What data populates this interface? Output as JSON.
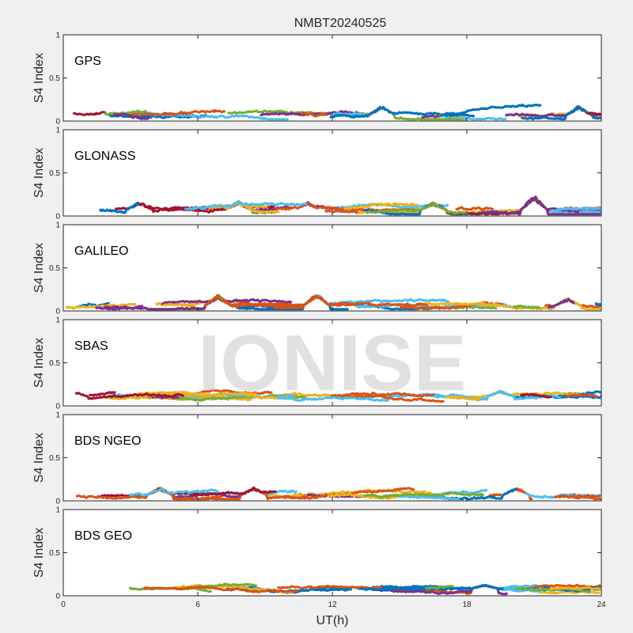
{
  "figure": {
    "title": "NMBT20240525",
    "watermark": "IONISE",
    "xlabel": "UT(h)"
  },
  "chart_data": [
    {
      "type": "scatter",
      "label": "GPS",
      "ylabel": "S4 Index",
      "xlim": [
        0,
        24
      ],
      "ylim": [
        0,
        1
      ],
      "xticks": [
        "0",
        "6",
        "12",
        "18",
        "24"
      ],
      "yticks": [
        "0",
        "0.5",
        "1"
      ],
      "base": 0.065,
      "spread": 0.05,
      "peaks": [
        [
          0.2,
          0.12
        ],
        [
          14.2,
          0.19
        ],
        [
          23.0,
          0.18
        ]
      ]
    },
    {
      "type": "scatter",
      "label": "GLONASS",
      "ylabel": "S4 Index",
      "xlim": [
        0,
        24
      ],
      "ylim": [
        0,
        1
      ],
      "xticks": [
        "0",
        "6",
        "12",
        "18",
        "24"
      ],
      "yticks": [
        "0",
        "0.5",
        "1"
      ],
      "base": 0.07,
      "spread": 0.06,
      "peaks": [
        [
          3.4,
          0.17
        ],
        [
          7.8,
          0.18
        ],
        [
          10.9,
          0.17
        ],
        [
          16.5,
          0.16
        ],
        [
          21.0,
          0.25
        ]
      ]
    },
    {
      "type": "scatter",
      "label": "GALILEO",
      "ylabel": "S4 Index",
      "xlim": [
        0,
        24
      ],
      "ylim": [
        0,
        1
      ],
      "xticks": [
        "0",
        "6",
        "12",
        "18",
        "24"
      ],
      "yticks": [
        "0",
        "0.5",
        "1"
      ],
      "base": 0.06,
      "spread": 0.05,
      "peaks": [
        [
          6.9,
          0.19
        ],
        [
          11.3,
          0.21
        ],
        [
          22.5,
          0.15
        ]
      ]
    },
    {
      "type": "scatter",
      "label": "SBAS",
      "ylabel": "S4 Index",
      "xlim": [
        0,
        24
      ],
      "ylim": [
        0,
        1
      ],
      "xticks": [
        "0",
        "6",
        "12",
        "18",
        "24"
      ],
      "yticks": [
        "0",
        "0.5",
        "1"
      ],
      "base": 0.11,
      "spread": 0.04,
      "peaks": [
        [
          0.5,
          0.17
        ],
        [
          19.5,
          0.18
        ]
      ]
    },
    {
      "type": "scatter",
      "label": "BDS NGEO",
      "ylabel": "S4 Index",
      "xlim": [
        0,
        24
      ],
      "ylim": [
        0,
        1
      ],
      "xticks": [
        "0",
        "6",
        "12",
        "18",
        "24"
      ],
      "yticks": [
        "0",
        "0.5",
        "1"
      ],
      "base": 0.065,
      "spread": 0.05,
      "peaks": [
        [
          4.3,
          0.16
        ],
        [
          8.5,
          0.16
        ],
        [
          20.2,
          0.17
        ]
      ]
    },
    {
      "type": "scatter",
      "label": "BDS GEO",
      "ylabel": "S4 Index",
      "xlim": [
        0,
        24
      ],
      "ylim": [
        0,
        1
      ],
      "xticks": [
        "0",
        "6",
        "12",
        "18",
        "24"
      ],
      "yticks": [
        "0",
        "0.5",
        "1"
      ],
      "base": 0.085,
      "spread": 0.025,
      "peaks": [
        [
          18.8,
          0.13
        ]
      ]
    }
  ],
  "colors": [
    "#0072BD",
    "#D95319",
    "#EDB120",
    "#7E2F8E",
    "#77AC30",
    "#4DBEEE",
    "#A2142F"
  ]
}
